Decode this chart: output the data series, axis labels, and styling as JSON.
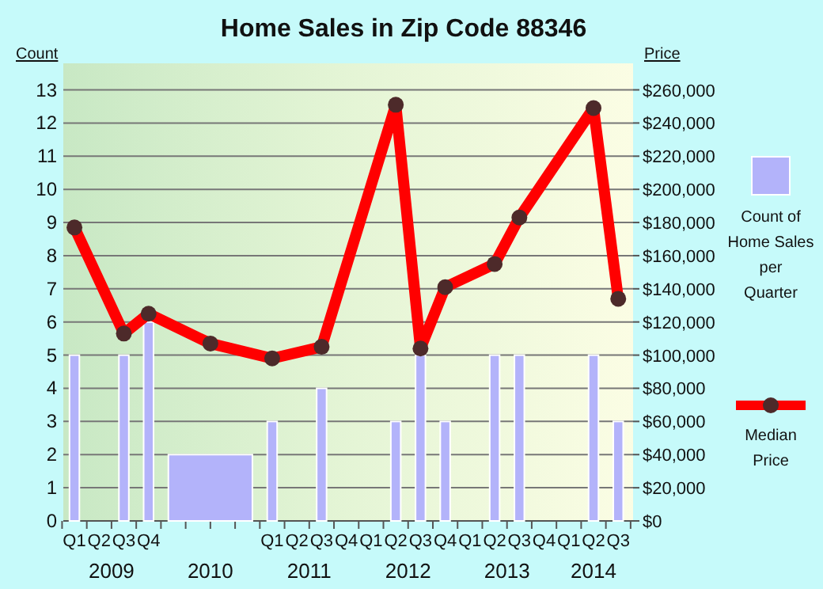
{
  "chart_data": {
    "type": "bar",
    "title": "Home Sales in Zip Code 88346",
    "ylabel": "Count",
    "y2label": "Price",
    "categories": [
      "Q1",
      "Q2",
      "Q3",
      "Q4",
      null,
      "Q1",
      "Q2",
      "Q3",
      "Q4",
      "Q1",
      "Q2",
      "Q3",
      "Q4",
      "Q1",
      "Q2",
      "Q3",
      "Q4",
      "Q1",
      "Q2",
      "Q3"
    ],
    "ylim": [
      0,
      13.8
    ],
    "yticks": [
      0,
      1,
      2,
      3,
      4,
      5,
      6,
      7,
      8,
      9,
      10,
      11,
      12,
      13
    ],
    "y2lim": [
      0,
      276000
    ],
    "y2ticks": [
      {
        "value": 0,
        "label": "$0"
      },
      {
        "value": 20000,
        "label": "$20,000"
      },
      {
        "value": 40000,
        "label": "$40,000"
      },
      {
        "value": 60000,
        "label": "$60,000"
      },
      {
        "value": 80000,
        "label": "$80,000"
      },
      {
        "value": 100000,
        "label": "$100,000"
      },
      {
        "value": 120000,
        "label": "$120,000"
      },
      {
        "value": 140000,
        "label": "$140,000"
      },
      {
        "value": 160000,
        "label": "$160,000"
      },
      {
        "value": 180000,
        "label": "$180,000"
      },
      {
        "value": 200000,
        "label": "$200,000"
      },
      {
        "value": 220000,
        "label": "$220,000"
      },
      {
        "value": 240000,
        "label": "$240,000"
      },
      {
        "value": 260000,
        "label": "$260,000"
      }
    ],
    "grid": "y",
    "legend": "right",
    "annotations": [
      "2009",
      "2010",
      "2011",
      "2012",
      "2013",
      "2014"
    ],
    "series": [
      {
        "name": "Count of Home Sales per Quarter",
        "color": "#b3b3fa",
        "values": [
          5,
          null,
          5,
          6,
          2,
          3,
          null,
          4,
          null,
          null,
          3,
          5,
          3,
          null,
          5,
          5,
          null,
          null,
          5,
          3
        ]
      },
      {
        "name": "Median Price",
        "type": "line",
        "axis": "y2",
        "color": "#ff0000",
        "marker": "circle",
        "line_style": "solid",
        "values": [
          177000,
          null,
          113000,
          125000,
          107000,
          98000,
          null,
          105000,
          null,
          null,
          251000,
          104000,
          141000,
          null,
          155000,
          183000,
          null,
          null,
          249000,
          134000
        ]
      }
    ]
  }
}
